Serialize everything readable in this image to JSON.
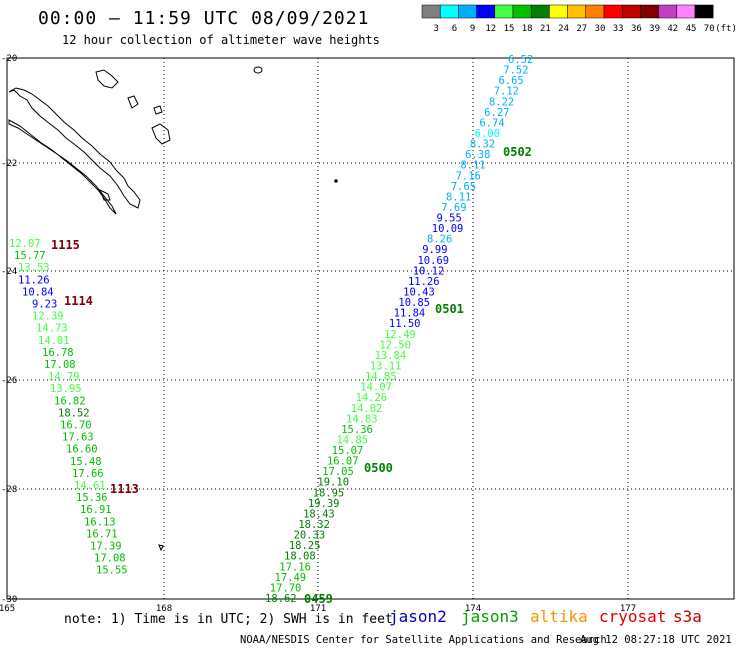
{
  "header": {
    "title": "00:00 – 11:59 UTC 08/09/2021",
    "subtitle": "12 hour collection of altimeter wave heights"
  },
  "legend": {
    "unit": "(ft)",
    "bins": [
      {
        "label": "3",
        "color": "#808080"
      },
      {
        "label": "6",
        "color": "#00ffff"
      },
      {
        "label": "9",
        "color": "#00b0ff"
      },
      {
        "label": "12",
        "color": "#0000ff"
      },
      {
        "label": "15",
        "color": "#40ff40"
      },
      {
        "label": "18",
        "color": "#00c000"
      },
      {
        "label": "21",
        "color": "#008000"
      },
      {
        "label": "24",
        "color": "#ffff00"
      },
      {
        "label": "27",
        "color": "#ffc000"
      },
      {
        "label": "30",
        "color": "#ff8000"
      },
      {
        "label": "33",
        "color": "#ff0000"
      },
      {
        "label": "36",
        "color": "#c00000"
      },
      {
        "label": "39",
        "color": "#800000"
      },
      {
        "label": "42",
        "color": "#c040c0"
      },
      {
        "label": "45",
        "color": "#ff80ff"
      },
      {
        "label": "70",
        "color": "#000000"
      }
    ]
  },
  "axes": {
    "lat_labels": [
      "-20",
      "-22",
      "-24",
      "-26",
      "-28",
      "-30"
    ],
    "lon_labels": [
      "165",
      "168",
      "171",
      "174",
      "177"
    ]
  },
  "time_labels": [
    {
      "text": "1115",
      "color": "#800000"
    },
    {
      "text": "1114",
      "color": "#800000"
    },
    {
      "text": "1113",
      "color": "#800000"
    },
    {
      "text": "0502",
      "color": "#008000"
    },
    {
      "text": "0501",
      "color": "#008000"
    },
    {
      "text": "0500",
      "color": "#008000"
    },
    {
      "text": "0459",
      "color": "#008000"
    }
  ],
  "tracks": {
    "west": [
      {
        "v": "12.07",
        "c": "#40ff40"
      },
      {
        "v": "15.77",
        "c": "#00c000"
      },
      {
        "v": "13.53",
        "c": "#40ff40"
      },
      {
        "v": "11.26",
        "c": "#0000ff"
      },
      {
        "v": "10.84",
        "c": "#0000ff"
      },
      {
        "v": "9.23",
        "c": "#0000ff"
      },
      {
        "v": "12.39",
        "c": "#40ff40"
      },
      {
        "v": "14.73",
        "c": "#40ff40"
      },
      {
        "v": "14.81",
        "c": "#40ff40"
      },
      {
        "v": "16.78",
        "c": "#00c000"
      },
      {
        "v": "17.08",
        "c": "#00c000"
      },
      {
        "v": "14.79",
        "c": "#40ff40"
      },
      {
        "v": "13.95",
        "c": "#40ff40"
      },
      {
        "v": "16.82",
        "c": "#00c000"
      },
      {
        "v": "18.52",
        "c": "#008000"
      },
      {
        "v": "16.70",
        "c": "#00c000"
      },
      {
        "v": "17.63",
        "c": "#00c000"
      },
      {
        "v": "16.60",
        "c": "#00c000"
      },
      {
        "v": "15.48",
        "c": "#00c000"
      },
      {
        "v": "17.66",
        "c": "#00c000"
      },
      {
        "v": "14.61",
        "c": "#40ff40"
      },
      {
        "v": "15.36",
        "c": "#00c000"
      },
      {
        "v": "16.91",
        "c": "#00c000"
      },
      {
        "v": "16.13",
        "c": "#00c000"
      },
      {
        "v": "16.71",
        "c": "#00c000"
      },
      {
        "v": "17.39",
        "c": "#00c000"
      },
      {
        "v": "17.08",
        "c": "#00c000"
      },
      {
        "v": "15.55",
        "c": "#00c000"
      }
    ],
    "east": [
      {
        "v": "6.52",
        "c": "#00b0ff"
      },
      {
        "v": "7.52",
        "c": "#00b0ff"
      },
      {
        "v": "6.65",
        "c": "#00b0ff"
      },
      {
        "v": "7.12",
        "c": "#00b0ff"
      },
      {
        "v": "8.22",
        "c": "#00b0ff"
      },
      {
        "v": "6.27",
        "c": "#00b0ff"
      },
      {
        "v": "6.74",
        "c": "#00b0ff"
      },
      {
        "v": "6.00",
        "c": "#00ffff"
      },
      {
        "v": "8.32",
        "c": "#00b0ff"
      },
      {
        "v": "6.38",
        "c": "#00b0ff"
      },
      {
        "v": "8.11",
        "c": "#00b0ff"
      },
      {
        "v": "7.16",
        "c": "#00b0ff"
      },
      {
        "v": "7.65",
        "c": "#00b0ff"
      },
      {
        "v": "8.11",
        "c": "#00b0ff"
      },
      {
        "v": "7.69",
        "c": "#00b0ff"
      },
      {
        "v": "9.55",
        "c": "#0000ff"
      },
      {
        "v": "10.09",
        "c": "#0000ff"
      },
      {
        "v": "8.26",
        "c": "#00b0ff"
      },
      {
        "v": "9.99",
        "c": "#0000ff"
      },
      {
        "v": "10.69",
        "c": "#0000ff"
      },
      {
        "v": "10.12",
        "c": "#0000ff"
      },
      {
        "v": "11.26",
        "c": "#0000ff"
      },
      {
        "v": "10.43",
        "c": "#0000ff"
      },
      {
        "v": "10.85",
        "c": "#0000ff"
      },
      {
        "v": "11.84",
        "c": "#0000ff"
      },
      {
        "v": "11.50",
        "c": "#0000ff"
      },
      {
        "v": "12.49",
        "c": "#40ff40"
      },
      {
        "v": "12.50",
        "c": "#40ff40"
      },
      {
        "v": "13.84",
        "c": "#40ff40"
      },
      {
        "v": "13.11",
        "c": "#40ff40"
      },
      {
        "v": "14.85",
        "c": "#40ff40"
      },
      {
        "v": "14.07",
        "c": "#40ff40"
      },
      {
        "v": "14.26",
        "c": "#40ff40"
      },
      {
        "v": "14.02",
        "c": "#40ff40"
      },
      {
        "v": "14.83",
        "c": "#40ff40"
      },
      {
        "v": "15.36",
        "c": "#00c000"
      },
      {
        "v": "14.85",
        "c": "#40ff40"
      },
      {
        "v": "15.07",
        "c": "#00c000"
      },
      {
        "v": "16.07",
        "c": "#00c000"
      },
      {
        "v": "17.05",
        "c": "#00c000"
      },
      {
        "v": "19.10",
        "c": "#008000"
      },
      {
        "v": "18.95",
        "c": "#008000"
      },
      {
        "v": "19.39",
        "c": "#008000"
      },
      {
        "v": "18.43",
        "c": "#008000"
      },
      {
        "v": "18.32",
        "c": "#008000"
      },
      {
        "v": "20.33",
        "c": "#008000"
      },
      {
        "v": "18.25",
        "c": "#008000"
      },
      {
        "v": "18.08",
        "c": "#008000"
      },
      {
        "v": "17.16",
        "c": "#00c000"
      },
      {
        "v": "17.49",
        "c": "#00c000"
      },
      {
        "v": "17.70",
        "c": "#00c000"
      },
      {
        "v": "18.62",
        "c": "#008000"
      }
    ]
  },
  "note": "note: 1) Time is in UTC; 2) SWH is in feet",
  "satellites": [
    {
      "name": "jason2",
      "color": "#0000c0"
    },
    {
      "name": "jason3",
      "color": "#00a000"
    },
    {
      "name": "altika",
      "color": "#ff9000"
    },
    {
      "name": "cryosat",
      "color": "#e00000"
    },
    {
      "name": "s3a",
      "color": "#c00000"
    }
  ],
  "credit": "NOAA/NESDIS Center for Satellite Applications and Research",
  "timestamp": "Aug 12 08:27:18 UTC 2021"
}
